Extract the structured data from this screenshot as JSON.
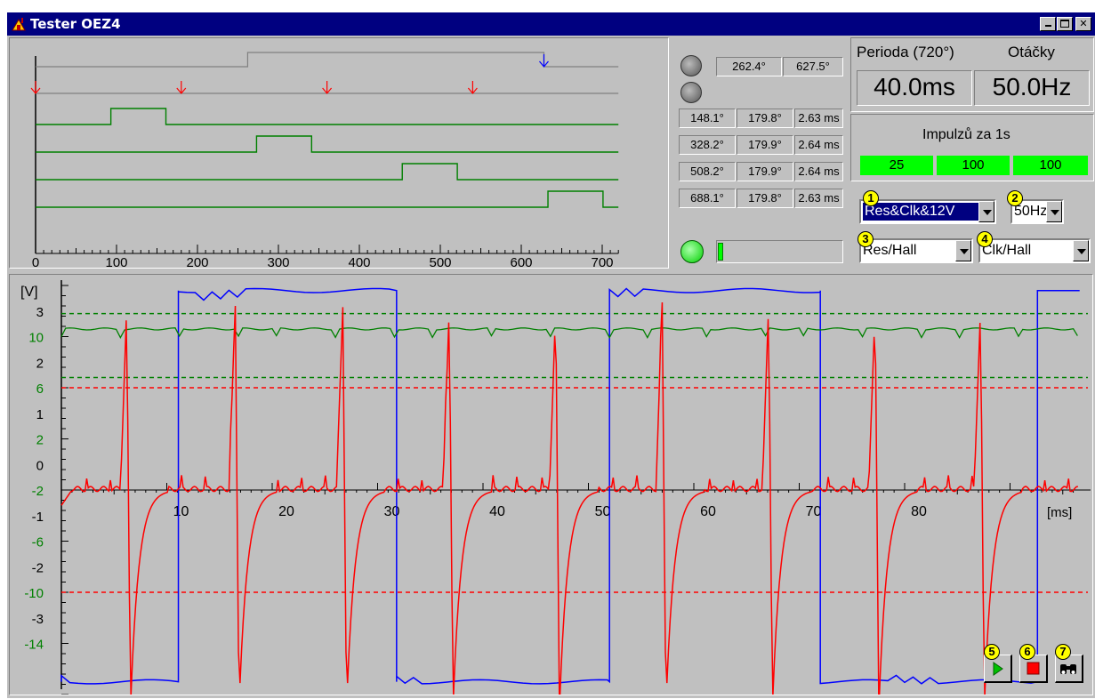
{
  "window": {
    "title": "Tester OEZ4"
  },
  "timing": {
    "x_ticks": [
      "0",
      "100",
      "200",
      "300",
      "400",
      "500",
      "600",
      "700"
    ],
    "top_readout": [
      "262.4°",
      "627.5°"
    ],
    "cyl_rows": [
      [
        "148.1°",
        "179.8°",
        "2.63 ms"
      ],
      [
        "328.2°",
        "179.9°",
        "2.64 ms"
      ],
      [
        "508.2°",
        "179.9°",
        "2.64 ms"
      ],
      [
        "688.1°",
        "179.8°",
        "2.63 ms"
      ]
    ],
    "progress_fraction": 0.04
  },
  "metrics": {
    "period_label": "Perioda (720°)",
    "rpm_label": "Otáčky",
    "period_value": "40.0ms",
    "rpm_value": "50.0Hz",
    "impulses_label": "Impulzů za 1s",
    "impulses": [
      "25",
      "100",
      "100"
    ]
  },
  "controls": {
    "combo1": "Res&Clk&12V",
    "combo2": "50Hz",
    "combo3": "Res/Hall",
    "combo4": "Clk/Hall",
    "badges": [
      "1",
      "2",
      "3",
      "4",
      "5",
      "6",
      "7"
    ]
  },
  "scope": {
    "unit_label": "[V]",
    "time_unit": "[ms]",
    "x_ticks": [
      "10",
      "20",
      "30",
      "40",
      "50",
      "60",
      "70",
      "80"
    ],
    "y_labels": [
      {
        "text": "3",
        "color": "#000000"
      },
      {
        "text": "10",
        "color": "#008000"
      },
      {
        "text": "2",
        "color": "#000000"
      },
      {
        "text": "6",
        "color": "#008000"
      },
      {
        "text": "1",
        "color": "#000000"
      },
      {
        "text": "2",
        "color": "#008000"
      },
      {
        "text": "0",
        "color": "#000000"
      },
      {
        "text": "-2",
        "color": "#008000"
      },
      {
        "text": "-1",
        "color": "#000000"
      },
      {
        "text": "-6",
        "color": "#008000"
      },
      {
        "text": "-2",
        "color": "#000000"
      },
      {
        "text": "-10",
        "color": "#008000"
      },
      {
        "text": "-3",
        "color": "#000000"
      },
      {
        "text": "-14",
        "color": "#008000"
      }
    ],
    "colors": {
      "red": "#ff0000",
      "blue": "#0000ff",
      "green": "#008000"
    }
  }
}
